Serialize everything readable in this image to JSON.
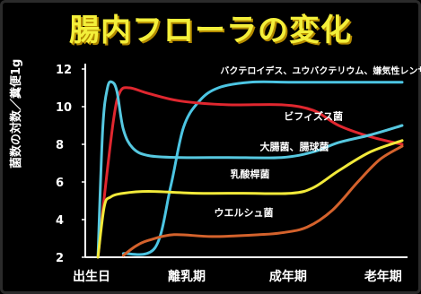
{
  "title": "腸内フローラの変化",
  "chart_data": {
    "type": "line",
    "ylabel": "菌数の対数／糞便1g",
    "ylim": [
      2,
      12
    ],
    "yticks": [
      2,
      4,
      6,
      8,
      10,
      12
    ],
    "categories": [
      "出生日",
      "離乳期",
      "成年期",
      "老年期"
    ],
    "series": [
      {
        "name": "バクテロイデス、ユウバクテリウム、嫌気性レンサ球菌",
        "color": "#4cc5e3",
        "points": [
          [
            0.12,
            2.2
          ],
          [
            0.22,
            2.5
          ],
          [
            0.27,
            5.8
          ],
          [
            0.31,
            8.9
          ],
          [
            0.36,
            10.3
          ],
          [
            0.42,
            11.0
          ],
          [
            0.52,
            11.3
          ],
          [
            0.65,
            11.3
          ],
          [
            0.8,
            11.3
          ],
          [
            1.0,
            11.3
          ]
        ]
      },
      {
        "name": "ビフィズス菌",
        "color": "#e0272f",
        "points": [
          [
            0.04,
            2.0
          ],
          [
            0.06,
            5.2
          ],
          [
            0.09,
            9.4
          ],
          [
            0.11,
            10.8
          ],
          [
            0.14,
            11.0
          ],
          [
            0.2,
            10.7
          ],
          [
            0.3,
            10.3
          ],
          [
            0.45,
            10.1
          ],
          [
            0.62,
            10.1
          ],
          [
            0.72,
            9.8
          ],
          [
            0.8,
            9.0
          ],
          [
            0.9,
            8.4
          ],
          [
            1.0,
            8.0
          ]
        ]
      },
      {
        "name": "大腸菌、腸球菌",
        "color": "#56c8e0",
        "points": [
          [
            0.04,
            2.0
          ],
          [
            0.055,
            8.8
          ],
          [
            0.07,
            11.0
          ],
          [
            0.085,
            11.3
          ],
          [
            0.1,
            10.8
          ],
          [
            0.12,
            8.8
          ],
          [
            0.15,
            7.8
          ],
          [
            0.2,
            7.4
          ],
          [
            0.3,
            7.3
          ],
          [
            0.45,
            7.3
          ],
          [
            0.62,
            7.3
          ],
          [
            0.72,
            7.6
          ],
          [
            0.8,
            8.1
          ],
          [
            0.9,
            8.5
          ],
          [
            1.0,
            9.0
          ]
        ]
      },
      {
        "name": "乳酸桿菌",
        "color": "#f2ea3a",
        "points": [
          [
            0.04,
            2.0
          ],
          [
            0.06,
            4.7
          ],
          [
            0.08,
            5.2
          ],
          [
            0.12,
            5.4
          ],
          [
            0.2,
            5.5
          ],
          [
            0.35,
            5.4
          ],
          [
            0.5,
            5.4
          ],
          [
            0.65,
            5.4
          ],
          [
            0.72,
            5.7
          ],
          [
            0.8,
            6.6
          ],
          [
            0.9,
            7.6
          ],
          [
            1.0,
            8.2
          ]
        ]
      },
      {
        "name": "ウエルシュ菌",
        "color": "#d4622c",
        "points": [
          [
            0.12,
            2.1
          ],
          [
            0.16,
            2.6
          ],
          [
            0.2,
            2.9
          ],
          [
            0.28,
            3.2
          ],
          [
            0.4,
            3.1
          ],
          [
            0.55,
            3.2
          ],
          [
            0.62,
            3.3
          ],
          [
            0.7,
            3.6
          ],
          [
            0.78,
            4.5
          ],
          [
            0.86,
            6.0
          ],
          [
            0.93,
            7.2
          ],
          [
            1.0,
            7.9
          ]
        ]
      }
    ],
    "series_labels": [
      {
        "text": "バクテロイデス、ユウバクテリウム、嫌気性レンサ球菌",
        "x": 0.78,
        "y": 11.75,
        "size": 10
      },
      {
        "text": "ビフィズス菌",
        "x": 0.72,
        "y": 9.3,
        "size": 11
      },
      {
        "text": "大腸菌、腸球菌",
        "x": 0.66,
        "y": 7.7,
        "size": 11
      },
      {
        "text": "乳酸桿菌",
        "x": 0.52,
        "y": 6.25,
        "size": 11
      },
      {
        "text": "ウエルシュ菌",
        "x": 0.5,
        "y": 4.2,
        "size": 11
      }
    ],
    "colors": {
      "axis": "#ffffff",
      "text": "#ffffff",
      "title": "#f3ef3a"
    }
  }
}
